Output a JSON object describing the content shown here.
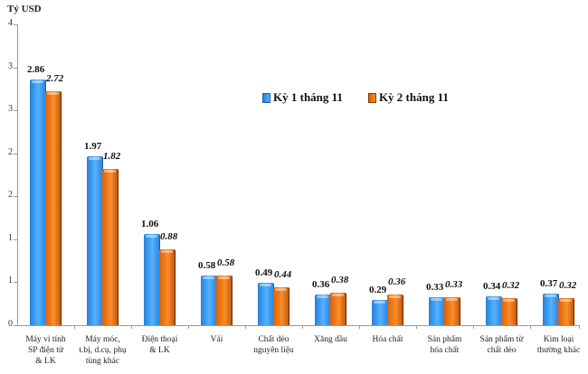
{
  "chart_data": {
    "type": "bar",
    "title": "",
    "ylabel": "Tỷ USD",
    "xlabel": "",
    "ylim": [
      0,
      3.5
    ],
    "yticks": [
      0,
      0.5,
      1,
      1.5,
      2,
      2.5,
      3,
      3.5
    ],
    "ytick_labels": [
      "0",
      "1",
      "1",
      "2",
      "2",
      "3",
      "3",
      "4"
    ],
    "grid": false,
    "legend_position": "upper-right-inside",
    "categories": [
      "Máy vi tính SP điện tử & LK",
      "Máy móc, t.bị, d.cụ, phụ tùng khác",
      "Điện thoại & LK",
      "Vải",
      "Chất dẻo nguyên liệu",
      "Xăng dầu",
      "Hóa chất",
      "Sản phẩm hóa chất",
      "Sản phẩm từ chất dẻo",
      "Kim loại thường khác"
    ],
    "category_lines": [
      [
        "Máy vi tính",
        "SP điện tử",
        "& LK"
      ],
      [
        "Máy móc,",
        "t.bị, d.cụ, phụ",
        "tùng khác"
      ],
      [
        "Điện thoại",
        "& LK"
      ],
      [
        "Vải"
      ],
      [
        "Chất dẻo",
        "nguyên liệu"
      ],
      [
        "Xăng dầu"
      ],
      [
        "Hóa chất"
      ],
      [
        "Sản phẩm",
        "hóa chất"
      ],
      [
        "Sản phẩm từ",
        "chất dẻo"
      ],
      [
        "Kim loại",
        "thường khác"
      ]
    ],
    "series": [
      {
        "name": "Kỳ 1 tháng 11",
        "color": "#3a96ee",
        "values": [
          2.86,
          1.97,
          1.06,
          0.58,
          0.49,
          0.36,
          0.29,
          0.33,
          0.34,
          0.37
        ]
      },
      {
        "name": "Kỳ 2 tháng 11",
        "color": "#ee7a14",
        "values": [
          2.72,
          1.82,
          0.88,
          0.58,
          0.44,
          0.38,
          0.36,
          0.33,
          0.32,
          0.32
        ]
      }
    ]
  },
  "unit_label": "Tỷ USD",
  "legend": {
    "items": [
      {
        "label": "Kỳ 1 tháng 11",
        "color": "#3a96ee"
      },
      {
        "label": "Kỳ 2 tháng 11",
        "color": "#ee7a14"
      }
    ]
  }
}
